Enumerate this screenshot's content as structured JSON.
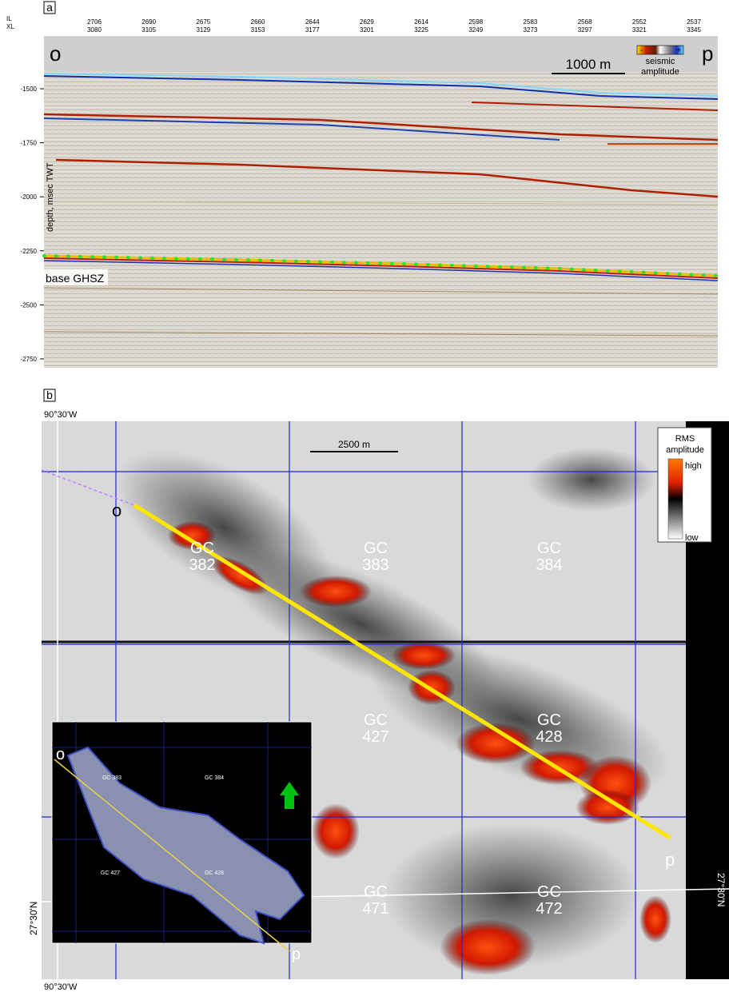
{
  "panel_a": {
    "label": "a",
    "il_label": "IL",
    "xl_label": "XL",
    "columns": [
      {
        "il": "2706",
        "xl": "3080"
      },
      {
        "il": "2690",
        "xl": "3105"
      },
      {
        "il": "2675",
        "xl": "3129"
      },
      {
        "il": "2660",
        "xl": "3153"
      },
      {
        "il": "2644",
        "xl": "3177"
      },
      {
        "il": "2629",
        "xl": "3201"
      },
      {
        "il": "2614",
        "xl": "3225"
      },
      {
        "il": "2598",
        "xl": "3249"
      },
      {
        "il": "2583",
        "xl": "3273"
      },
      {
        "il": "2568",
        "xl": "3297"
      },
      {
        "il": "2552",
        "xl": "3321"
      },
      {
        "il": "2537",
        "xl": "3345"
      }
    ],
    "left_end": "o",
    "right_end": "p",
    "scale_bar": "1000 m",
    "legend": {
      "minus": "-",
      "plus": "+",
      "title": [
        "seismic",
        "amplitude"
      ]
    },
    "axis_label": "depth, msec TWT",
    "depth_ticks": [
      -1500,
      -1750,
      -2000,
      -2250,
      -2500,
      -2750
    ],
    "horizon_label": "base GHSZ"
  },
  "panel_b": {
    "label": "b",
    "lon_top": "90°30'W",
    "lon_bottom": "90°30'W",
    "lat_left": "27°30'N",
    "lat_right": "27°30'N",
    "scale_bar": "2500 m",
    "legend": {
      "title": [
        "RMS",
        "amplitude"
      ],
      "high": "high",
      "low": "low"
    },
    "line_start": "o",
    "line_end": "p",
    "blocks": [
      {
        "name": "GC",
        "number": "382"
      },
      {
        "name": "GC",
        "number": "383"
      },
      {
        "name": "GC",
        "number": "384"
      },
      {
        "name": "GC",
        "number": "427"
      },
      {
        "name": "GC",
        "number": "428"
      },
      {
        "name": "GC",
        "number": "471"
      },
      {
        "name": "GC",
        "number": "472"
      }
    ],
    "inset": {
      "start": "o",
      "end": "p",
      "blocks": [
        "GC 383",
        "GC 384",
        "GC 427",
        "GC 428"
      ]
    }
  }
}
